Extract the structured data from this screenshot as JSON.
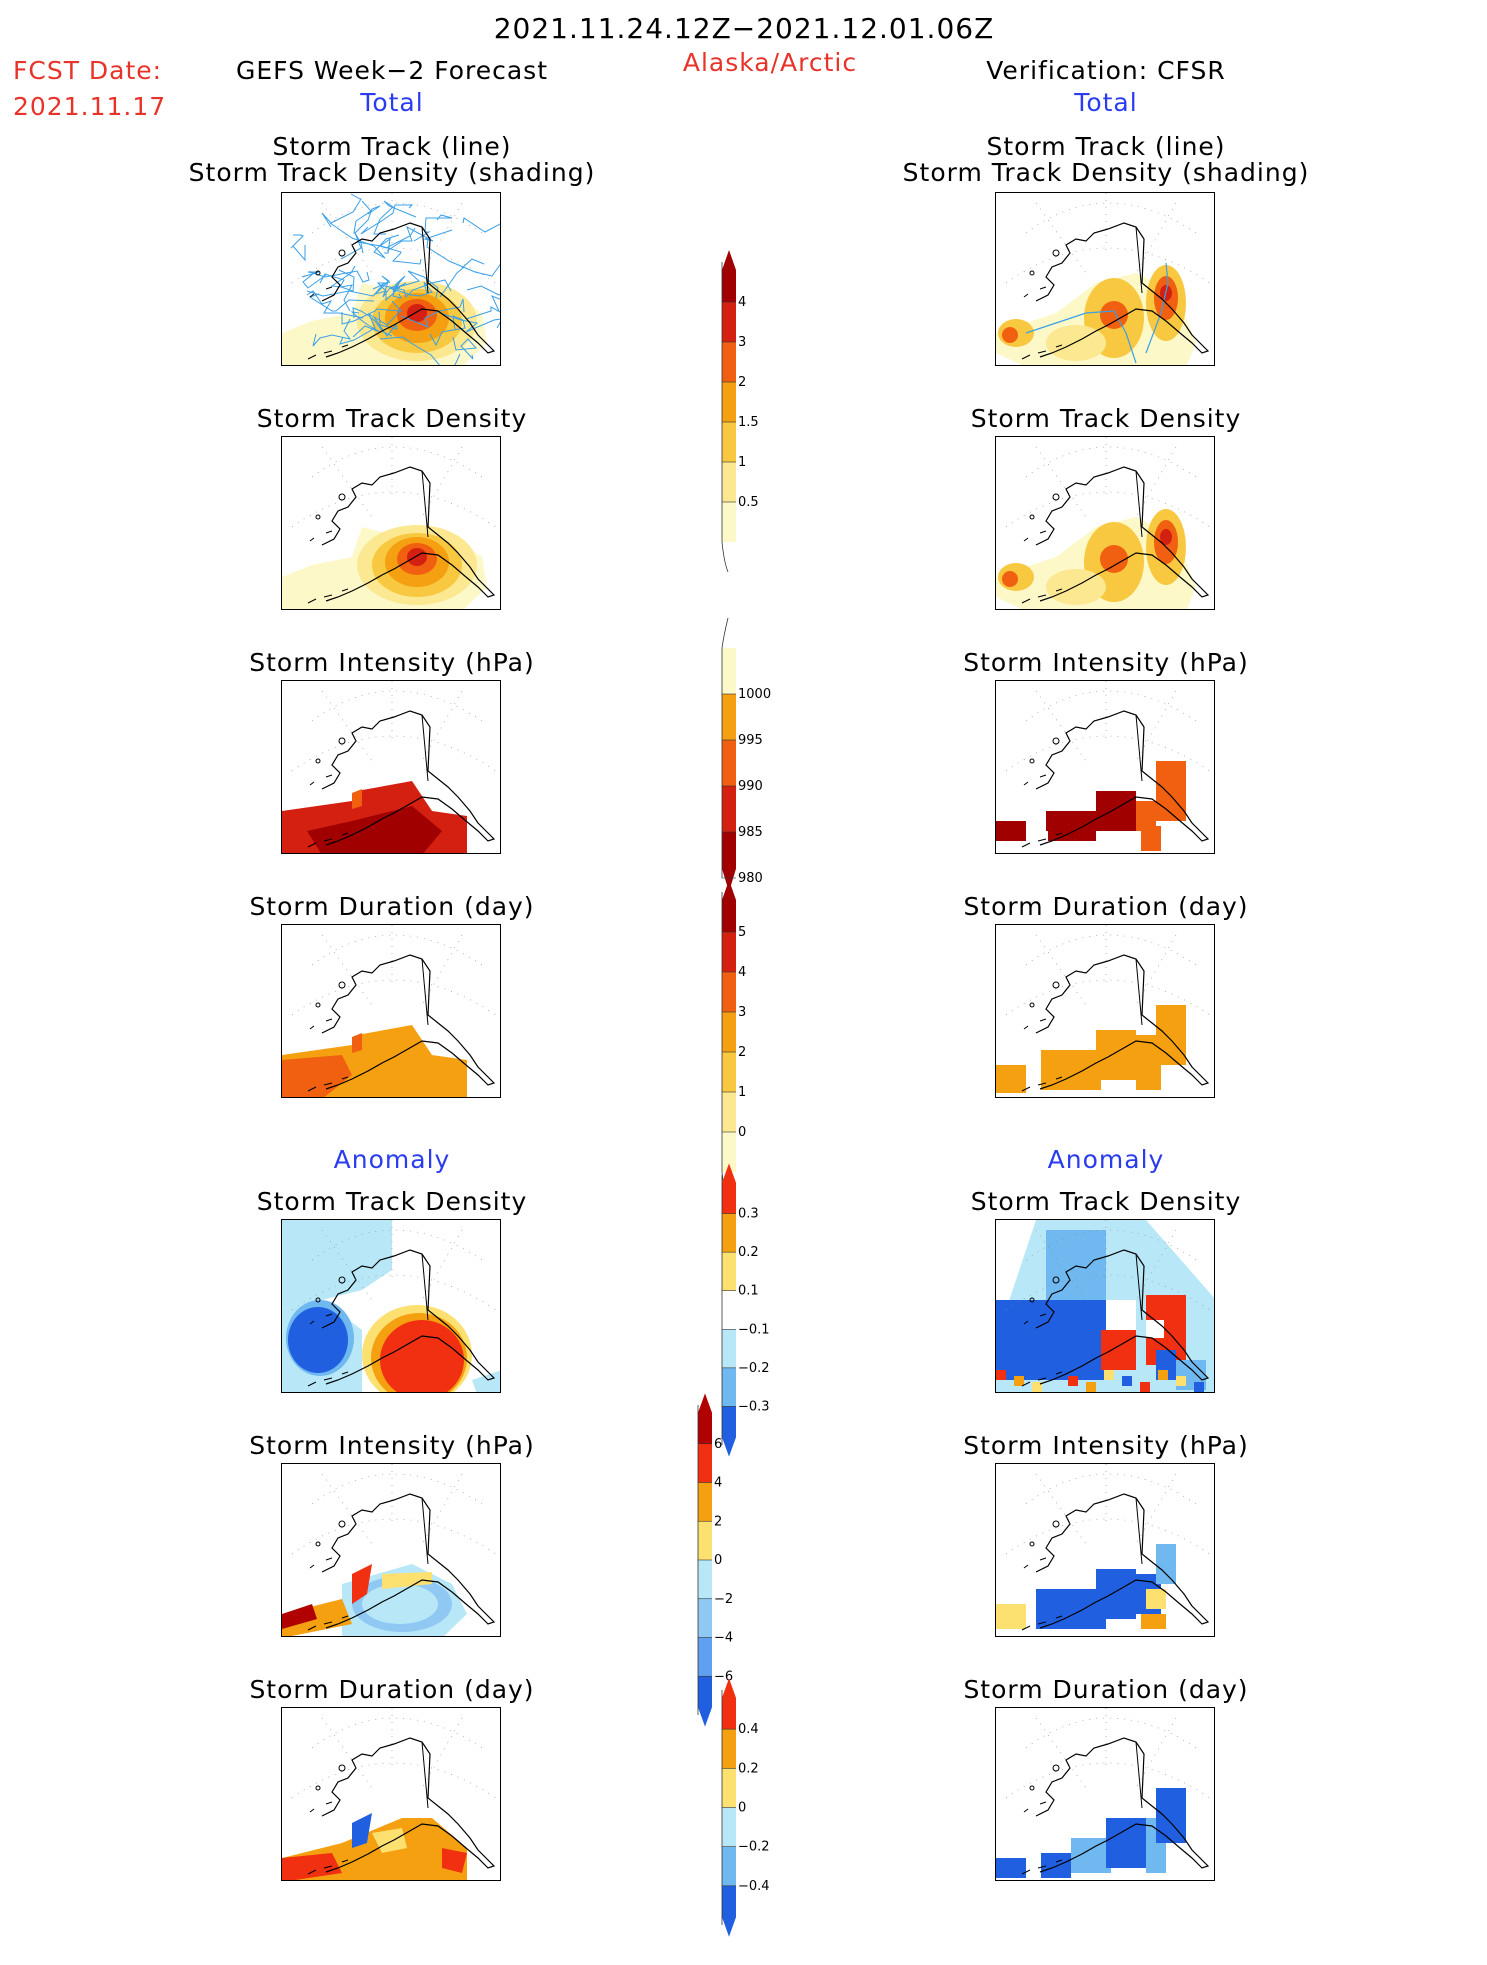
{
  "header": {
    "date_range": "2021.11.24.12Z−2021.12.01.06Z",
    "fcst_label": "FCST Date:",
    "fcst_date": "2021.11.17",
    "left_title": "GEFS Week−2 Forecast",
    "left_subtitle": "Total",
    "region": "Alaska/Arctic",
    "right_title": "Verification: CFSR",
    "right_subtitle": "Total"
  },
  "rows": [
    {
      "id": "track",
      "title_line1": "Storm Track (line)",
      "title_line2": "Storm Track Density (shading)"
    },
    {
      "id": "density",
      "title_line1": "Storm Track Density"
    },
    {
      "id": "intensity",
      "title_line1": "Storm Intensity (hPa)"
    },
    {
      "id": "duration",
      "title_line1": "Storm Duration (day)"
    },
    {
      "id": "anom_density",
      "section": "Anomaly",
      "title_line1": "Storm Track Density"
    },
    {
      "id": "anom_intensity",
      "title_line1": "Storm Intensity (hPa)"
    },
    {
      "id": "anom_duration",
      "title_line1": "Storm Duration (day)"
    }
  ],
  "colorbars": [
    {
      "id": "cb_density",
      "labels": [
        "4",
        "3",
        "2",
        "1.5",
        "1",
        "0.5"
      ],
      "colors": [
        "#a00000",
        "#d42010",
        "#f06010",
        "#f5a010",
        "#f8c840",
        "#fce890",
        "#fdf8c8"
      ]
    },
    {
      "id": "cb_intensity",
      "labels": [
        "1000",
        "995",
        "990",
        "985",
        "980"
      ],
      "colors": [
        "#fdf8c8",
        "#f5a010",
        "#f06010",
        "#d42010",
        "#a00000"
      ]
    },
    {
      "id": "cb_duration",
      "labels": [
        "5",
        "4",
        "3",
        "2",
        "1",
        "0"
      ],
      "colors": [
        "#a00000",
        "#d42010",
        "#f06010",
        "#f5a010",
        "#f8c840",
        "#fce890",
        "#fdf8c8"
      ]
    },
    {
      "id": "cb_anom_density",
      "labels": [
        "0.3",
        "0.2",
        "0.1",
        "−0.1",
        "−0.2",
        "−0.3"
      ],
      "colors": [
        "#f03010",
        "#f5a010",
        "#fce070",
        "#ffffff",
        "#b8e8f8",
        "#70b8f0",
        "#2060e0"
      ]
    },
    {
      "id": "cb_anom_intensity",
      "labels": [
        "6",
        "4",
        "2",
        "0",
        "−2",
        "−4",
        "−6"
      ],
      "colors": [
        "#b00000",
        "#f03010",
        "#f5a010",
        "#fce070",
        "#b8e8f8",
        "#90c8f4",
        "#60a0f0",
        "#2060e0"
      ]
    },
    {
      "id": "cb_anom_duration",
      "labels": [
        "0.4",
        "0.2",
        "0",
        "−0.2",
        "−0.4"
      ],
      "colors": [
        "#f03010",
        "#f5a010",
        "#fce070",
        "#b8e8f8",
        "#70b8f0",
        "#2060e0"
      ]
    }
  ],
  "colors": {
    "red": "#e8332a",
    "blue": "#2a3cf0",
    "track_line": "#3aa0e8"
  }
}
